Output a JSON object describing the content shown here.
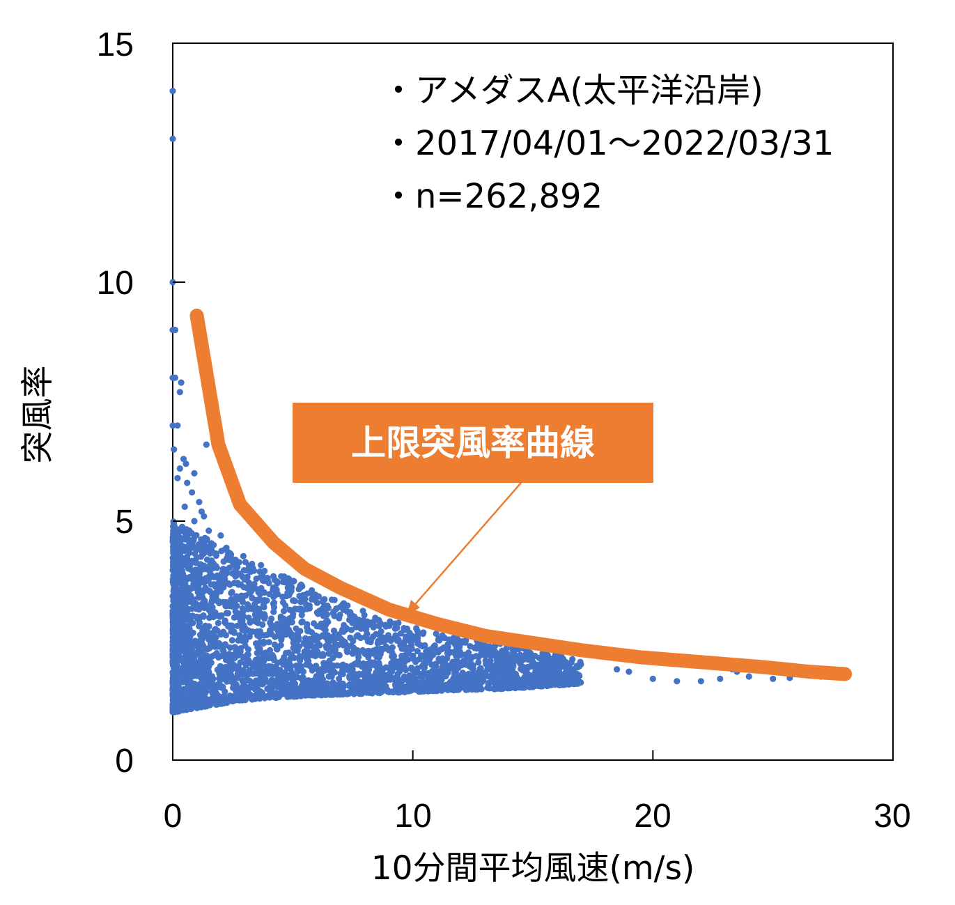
{
  "chart_data": {
    "type": "scatter",
    "xlabel": "10分間平均風速(m/s)",
    "ylabel": "突風率",
    "xlim": [
      0,
      30
    ],
    "ylim": [
      0,
      15
    ],
    "xticks": [
      0,
      10,
      20,
      30
    ],
    "yticks": [
      0,
      5,
      10,
      15
    ],
    "grid": false,
    "annotations": [
      "・アメダスA(太平洋沿岸)",
      "・2017/04/01～2022/03/31",
      "・n=262,892"
    ],
    "callout": {
      "text": "上限突風率曲線",
      "points_to": "upper-limit-curve"
    },
    "colors": {
      "points": "#4472C4",
      "curve": "#ED7D31",
      "callout_bg": "#ED7D31"
    },
    "series": [
      {
        "kind": "scatter",
        "points": [
          [
            0,
            14
          ],
          [
            0,
            13
          ],
          [
            0,
            10
          ],
          [
            0,
            9
          ],
          [
            0.1,
            9
          ],
          [
            0,
            8
          ],
          [
            0.1,
            8
          ],
          [
            0.35,
            7.9
          ],
          [
            0.3,
            7.7
          ],
          [
            0,
            7
          ],
          [
            0.2,
            7
          ],
          [
            0.05,
            6.5
          ],
          [
            1.4,
            6.6
          ],
          [
            0.45,
            6.3
          ],
          [
            0.55,
            6.2
          ],
          [
            0.3,
            6.1
          ],
          [
            0.9,
            6.0
          ],
          [
            0.2,
            5.9
          ],
          [
            0.6,
            5.8
          ],
          [
            0.8,
            5.6
          ],
          [
            1.1,
            5.4
          ],
          [
            1.2,
            5.2
          ],
          [
            0.5,
            5.3
          ],
          [
            1.3,
            5.1
          ],
          [
            0.9,
            5.0
          ],
          [
            1.5,
            4.8
          ],
          [
            2.0,
            4.7
          ],
          [
            1.7,
            4.5
          ],
          [
            2.3,
            4.3
          ],
          [
            2.6,
            4.1
          ],
          [
            2.1,
            4.0
          ],
          [
            2.8,
            3.9
          ],
          [
            3.0,
            3.8
          ],
          [
            3.1,
            3.6
          ],
          [
            3.2,
            3.5
          ],
          [
            3.3,
            3.4
          ],
          [
            3.5,
            3.35
          ],
          [
            4.6,
            3.3
          ],
          [
            3.8,
            3.2
          ],
          [
            4.2,
            3.1
          ],
          [
            4.5,
            3.0
          ],
          [
            5.0,
            3.0
          ],
          [
            5.4,
            2.9
          ],
          [
            6.0,
            2.8
          ],
          [
            6.3,
            2.75
          ],
          [
            7.2,
            2.75
          ],
          [
            8.1,
            2.9
          ],
          [
            9.5,
            2.65
          ],
          [
            8.8,
            2.5
          ],
          [
            10.5,
            2.4
          ],
          [
            12.0,
            2.2
          ],
          [
            13.5,
            2.1
          ],
          [
            15.5,
            2.2
          ],
          [
            16.2,
            2.0
          ],
          [
            17.5,
            2.2
          ],
          [
            17.0,
            2.0
          ],
          [
            19.0,
            1.85
          ],
          [
            18.5,
            1.9
          ],
          [
            20.0,
            1.7
          ],
          [
            21.0,
            1.65
          ],
          [
            22.0,
            1.65
          ],
          [
            22.8,
            1.7
          ],
          [
            23.3,
            1.9
          ],
          [
            23.5,
            1.85
          ],
          [
            24.0,
            1.75
          ],
          [
            25.0,
            1.7
          ],
          [
            25.7,
            1.72
          ],
          [
            26.0,
            1.9
          ],
          [
            26.0,
            1.8
          ],
          [
            27.0,
            1.75
          ],
          [
            27.3,
            1.75
          ]
        ],
        "dense_cloud": {
          "x_range": [
            0,
            17
          ],
          "y_lower": [
            1.0,
            1.25,
            1.35,
            1.4,
            1.45,
            1.5,
            1.6
          ],
          "y_upper": [
            5.0,
            4.3,
            3.6,
            3.0,
            2.6,
            2.4,
            2.1
          ]
        }
      },
      {
        "kind": "line",
        "x": [
          1.0,
          1.9,
          2.8,
          4.2,
          5.5,
          7.0,
          9.0,
          11.0,
          13.0,
          15.0,
          17.0,
          19.5,
          22.0,
          24.5,
          26.5,
          28.0
        ],
        "y": [
          9.3,
          6.6,
          5.35,
          4.55,
          4.0,
          3.6,
          3.15,
          2.85,
          2.6,
          2.45,
          2.3,
          2.15,
          2.05,
          1.95,
          1.85,
          1.8
        ]
      }
    ]
  }
}
